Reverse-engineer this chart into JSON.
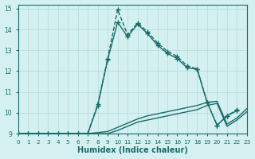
{
  "xlabel": "Humidex (Indice chaleur)",
  "background_color": "#d4f0f0",
  "grid_color": "#b8dede",
  "line_color": "#1a6b6b",
  "xlim": [
    0,
    23
  ],
  "ylim": [
    9,
    15.2
  ],
  "yticks": [
    9,
    10,
    11,
    12,
    13,
    14,
    15
  ],
  "xticks": [
    0,
    1,
    2,
    3,
    4,
    5,
    6,
    7,
    8,
    9,
    10,
    11,
    12,
    13,
    14,
    15,
    16,
    17,
    18,
    19,
    20,
    21,
    22,
    23
  ],
  "series": [
    {
      "x": [
        0,
        1,
        2,
        3,
        4,
        5,
        6,
        7,
        8,
        9,
        10,
        11,
        12,
        13,
        14,
        15,
        16,
        17,
        18,
        19,
        20,
        21,
        22,
        23
      ],
      "y": [
        9,
        9,
        9,
        9,
        9,
        9,
        9,
        9,
        9,
        9,
        9.15,
        9.35,
        9.55,
        9.65,
        9.75,
        9.85,
        9.95,
        10.05,
        10.15,
        10.35,
        10.45,
        9.35,
        9.65,
        10.05
      ],
      "marker": false,
      "linestyle": "-",
      "linewidth": 1.0
    },
    {
      "x": [
        0,
        1,
        2,
        3,
        4,
        5,
        6,
        7,
        8,
        9,
        10,
        11,
        12,
        13,
        14,
        15,
        16,
        17,
        18,
        19,
        20,
        21,
        22,
        23
      ],
      "y": [
        9,
        9,
        9,
        9,
        9,
        9,
        9,
        9,
        9.05,
        9.1,
        9.3,
        9.5,
        9.7,
        9.85,
        9.95,
        10.05,
        10.15,
        10.25,
        10.35,
        10.5,
        10.55,
        9.45,
        9.75,
        10.2
      ],
      "marker": false,
      "linestyle": "-",
      "linewidth": 1.0
    },
    {
      "x": [
        0,
        1,
        2,
        3,
        4,
        5,
        6,
        7,
        8,
        9,
        10,
        11,
        12,
        13,
        14,
        15,
        16,
        17,
        18,
        19,
        20,
        21,
        22,
        23
      ],
      "y": [
        9,
        9,
        9,
        9,
        9,
        9,
        9,
        9,
        10.4,
        12.6,
        14.95,
        13.75,
        14.3,
        13.9,
        13.35,
        12.95,
        12.7,
        12.25,
        12.1,
        10.5,
        9.4,
        9.85,
        10.15,
        null
      ],
      "marker": true,
      "linestyle": "--",
      "linewidth": 1.0
    },
    {
      "x": [
        0,
        1,
        2,
        3,
        4,
        5,
        6,
        7,
        8,
        9,
        10,
        11,
        12,
        13,
        14,
        15,
        16,
        17,
        18,
        19,
        20,
        21,
        22,
        23
      ],
      "y": [
        9,
        9,
        9,
        9,
        9,
        9,
        9,
        9,
        10.35,
        12.55,
        14.35,
        13.65,
        14.25,
        13.8,
        13.25,
        12.85,
        12.6,
        12.15,
        12.1,
        10.5,
        9.4,
        9.85,
        10.1,
        null
      ],
      "marker": true,
      "linestyle": "-",
      "linewidth": 1.0
    }
  ]
}
